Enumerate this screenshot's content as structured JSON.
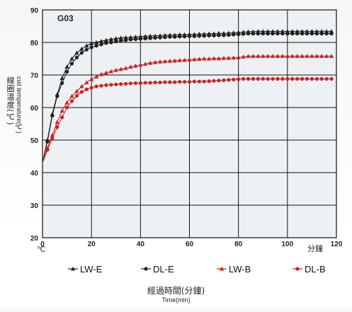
{
  "chart_data": {
    "type": "line",
    "title": "G03",
    "ylabel_cn": "線圈溫度(℃)",
    "ylabel_en": "coil temperature(℃)",
    "xlabel_cn": "經過時間(分鐘)",
    "xlabel_en": "Time(min)",
    "y_unit": "℃",
    "x_unit": "分鐘",
    "xlim": [
      0,
      120
    ],
    "ylim": [
      20,
      90
    ],
    "x_ticks": [
      0,
      20,
      40,
      60,
      80,
      100,
      120
    ],
    "y_ticks": [
      20,
      30,
      40,
      50,
      60,
      70,
      80,
      90
    ],
    "grid": true,
    "legend_position": "bottom",
    "x": [
      0,
      2,
      4,
      6,
      8,
      10,
      12,
      14,
      16,
      18,
      20,
      22,
      24,
      26,
      28,
      30,
      32,
      34,
      36,
      38,
      40,
      42,
      44,
      46,
      48,
      50,
      52,
      54,
      56,
      58,
      60,
      62,
      64,
      66,
      68,
      70,
      72,
      74,
      76,
      78,
      80,
      82,
      84,
      86,
      88,
      90,
      92,
      94,
      96,
      98,
      100,
      102,
      104,
      106,
      108,
      110,
      112,
      114,
      116,
      118
    ],
    "series": [
      {
        "name": "LW-E",
        "marker": "triangle",
        "color": "#222222",
        "values": [
          43.0,
          50.0,
          58.0,
          64.0,
          69.0,
          72.5,
          75.0,
          76.8,
          78.0,
          79.0,
          79.7,
          80.0,
          80.4,
          80.7,
          81.0,
          81.2,
          81.4,
          81.5,
          81.6,
          81.7,
          81.8,
          81.9,
          82.0,
          82.0,
          82.1,
          82.2,
          82.3,
          82.3,
          82.4,
          82.4,
          82.5,
          82.5,
          82.6,
          82.6,
          82.7,
          82.7,
          82.8,
          82.8,
          82.9,
          83.0,
          83.1,
          83.2,
          83.3,
          83.3,
          83.4,
          83.4,
          83.4,
          83.4,
          83.4,
          83.4,
          83.4,
          83.4,
          83.4,
          83.4,
          83.4,
          83.4,
          83.4,
          83.4,
          83.4,
          83.4
        ]
      },
      {
        "name": "DL-E",
        "marker": "circle",
        "color": "#222222",
        "values": [
          43.0,
          49.5,
          57.5,
          63.5,
          67.5,
          71.0,
          73.5,
          75.4,
          76.8,
          77.8,
          78.5,
          79.0,
          79.4,
          79.8,
          80.0,
          80.3,
          80.5,
          80.7,
          80.9,
          81.0,
          81.1,
          81.2,
          81.3,
          81.4,
          81.5,
          81.6,
          81.7,
          81.7,
          81.8,
          81.8,
          81.9,
          81.9,
          82.0,
          82.0,
          82.1,
          82.1,
          82.2,
          82.2,
          82.3,
          82.4,
          82.5,
          82.6,
          82.7,
          82.7,
          82.7,
          82.7,
          82.7,
          82.7,
          82.7,
          82.7,
          82.7,
          82.7,
          82.7,
          82.7,
          82.7,
          82.7,
          82.7,
          82.7,
          82.7,
          82.7
        ]
      },
      {
        "name": "LW-B",
        "marker": "triangle",
        "color": "#cc2222",
        "values": [
          43.0,
          47.5,
          51.5,
          55.5,
          59.0,
          61.5,
          63.5,
          65.0,
          66.5,
          67.7,
          68.7,
          69.5,
          70.2,
          70.7,
          71.1,
          71.5,
          71.8,
          72.1,
          72.5,
          72.8,
          73.1,
          73.4,
          73.7,
          73.9,
          74.1,
          74.2,
          74.3,
          74.4,
          74.5,
          74.6,
          74.7,
          74.8,
          74.9,
          75.0,
          75.0,
          75.1,
          75.1,
          75.2,
          75.2,
          75.3,
          75.4,
          75.6,
          75.8,
          75.8,
          75.8,
          75.8,
          75.8,
          75.8,
          75.8,
          75.8,
          75.8,
          75.8,
          75.8,
          75.8,
          75.8,
          75.8,
          75.8,
          75.8,
          75.8,
          75.8
        ]
      },
      {
        "name": "DL-B",
        "marker": "circle",
        "color": "#cc2222",
        "values": [
          43.0,
          47.0,
          50.5,
          54.0,
          57.0,
          60.0,
          62.0,
          63.6,
          64.8,
          65.6,
          66.1,
          66.5,
          66.7,
          66.9,
          67.0,
          67.1,
          67.2,
          67.3,
          67.4,
          67.5,
          67.5,
          67.6,
          67.6,
          67.7,
          67.7,
          67.8,
          67.8,
          67.8,
          67.9,
          67.9,
          67.9,
          68.0,
          68.0,
          68.0,
          68.1,
          68.2,
          68.3,
          68.4,
          68.5,
          68.6,
          68.7,
          68.8,
          68.8,
          68.8,
          68.8,
          68.8,
          68.8,
          68.8,
          68.8,
          68.8,
          68.8,
          68.8,
          68.8,
          68.8,
          68.8,
          68.8,
          68.8,
          68.8,
          68.8,
          68.8
        ]
      }
    ]
  }
}
